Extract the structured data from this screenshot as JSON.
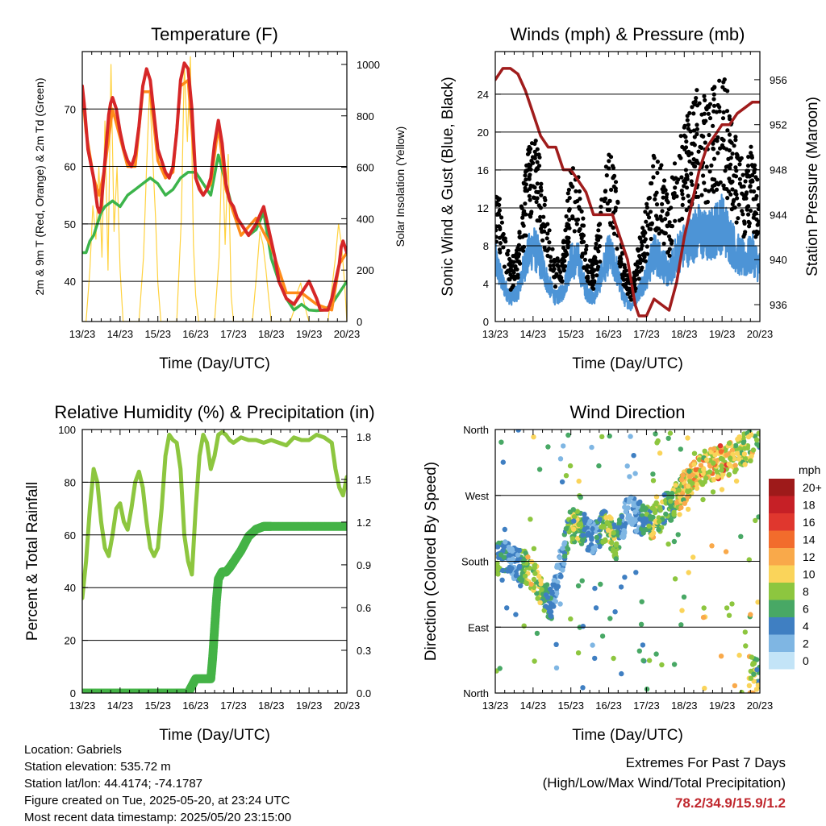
{
  "colors": {
    "red": "#d62728",
    "orange": "#ff8c1a",
    "green": "#3cb44b",
    "yellow": "#ffd23f",
    "black": "#000000",
    "blue": "#4d94d6",
    "maroon": "#a01c1c",
    "rh": "#8dc63f",
    "precip": "#44b346",
    "extremes": "#c0272d"
  },
  "info": {
    "location": "Location: Gabriels",
    "elevation": "Station elevation: 535.72 m",
    "latlon": "Station lat/lon: 44.4174; -74.1787",
    "created": "Figure created on Tue, 2025-05-20, at 23:24 UTC",
    "timestamp": "Most recent data timestamp: 2025/05/20 23:15:00"
  },
  "extremes": {
    "line1": "Extremes For Past 7 Days",
    "line2": "(High/Low/Max Wind/Total Precipitation)",
    "values": "78.2/34.9/15.9/1.2"
  },
  "chart_data": [
    {
      "id": "temperature",
      "type": "line",
      "title": "Temperature (F)",
      "xlabel": "Time (Day/UTC)",
      "ylabel": "2m & 9m T (Red, Orange) & 2m Td (Green)",
      "ylabel_right": "Solar Insolation (Yellow)",
      "x_ticks": [
        "13/23",
        "14/23",
        "15/23",
        "16/23",
        "17/23",
        "18/23",
        "19/23",
        "20/23"
      ],
      "xlim": [
        0,
        7
      ],
      "ylim": [
        33,
        80
      ],
      "ylim_right": [
        0,
        1050
      ],
      "y_ticks": [
        40,
        50,
        60,
        70
      ],
      "y_ticks_right": [
        0,
        200,
        400,
        600,
        800,
        1000
      ],
      "grid_y": [
        40,
        50,
        60,
        70
      ],
      "series": [
        {
          "color_key": "red",
          "axis": "left",
          "x": [
            0,
            0.05,
            0.15,
            0.3,
            0.4,
            0.45,
            0.5,
            0.6,
            0.7,
            0.75,
            0.8,
            0.9,
            1.0,
            1.1,
            1.2,
            1.3,
            1.4,
            1.5,
            1.6,
            1.7,
            1.8,
            1.9,
            2.0,
            2.1,
            2.2,
            2.3,
            2.4,
            2.5,
            2.6,
            2.7,
            2.8,
            2.9,
            3.0,
            3.1,
            3.2,
            3.3,
            3.4,
            3.5,
            3.6,
            3.7,
            3.8,
            3.9,
            4.0,
            4.1,
            4.2,
            4.4,
            4.6,
            4.8,
            5.0,
            5.1,
            5.2,
            5.4,
            5.6,
            5.8,
            6.0,
            6.2,
            6.3,
            6.4,
            6.5,
            6.6,
            6.7,
            6.8,
            6.85,
            6.9,
            7.0
          ],
          "y": [
            74,
            71,
            63,
            58,
            53,
            52,
            53,
            61,
            69,
            71,
            72,
            70,
            66,
            63,
            61,
            60,
            62,
            67,
            74,
            77,
            75,
            69,
            63,
            61,
            59,
            58,
            60,
            66,
            75,
            78,
            77,
            70,
            58,
            56,
            55,
            56,
            58,
            64,
            68,
            64,
            57,
            54,
            53,
            51,
            50,
            48,
            50,
            53,
            47,
            44,
            40,
            37,
            36,
            38,
            40,
            37,
            35,
            35,
            35,
            37,
            40,
            43,
            46,
            47,
            45
          ]
        },
        {
          "color_key": "orange",
          "axis": "left",
          "x": [
            0,
            0.1,
            0.3,
            0.45,
            0.6,
            0.8,
            1.0,
            1.2,
            1.4,
            1.6,
            1.8,
            2.0,
            2.2,
            2.4,
            2.6,
            2.8,
            3.0,
            3.2,
            3.4,
            3.6,
            3.8,
            4.0,
            4.2,
            4.6,
            5.0,
            5.4,
            5.8,
            6.2,
            6.6,
            6.8,
            7.0
          ],
          "y": [
            73,
            66,
            58,
            55,
            60,
            70,
            65,
            60,
            60,
            73,
            73,
            61,
            58,
            59,
            74,
            75,
            58,
            55,
            57,
            67,
            56,
            52,
            48,
            51,
            46,
            38,
            38,
            36,
            35,
            43,
            45
          ]
        },
        {
          "color_key": "green",
          "axis": "left",
          "x": [
            0,
            0.1,
            0.2,
            0.3,
            0.4,
            0.5,
            0.6,
            0.8,
            1.0,
            1.2,
            1.4,
            1.6,
            1.8,
            2.0,
            2.2,
            2.4,
            2.6,
            2.8,
            3.0,
            3.2,
            3.4,
            3.6,
            3.8,
            4.0,
            4.2,
            4.4,
            4.6,
            4.8,
            5.0,
            5.2,
            5.4,
            5.6,
            5.8,
            6.0,
            6.2,
            6.4,
            6.6,
            6.8,
            7.0
          ],
          "y": [
            45,
            45,
            47,
            48,
            50,
            52,
            53,
            54,
            53,
            55,
            56,
            57,
            58,
            57,
            55,
            56,
            58,
            59,
            59,
            57,
            55,
            62,
            57,
            52,
            50,
            48,
            49,
            52,
            44,
            40,
            37,
            35,
            36,
            35,
            34.9,
            35,
            36,
            38,
            40
          ]
        },
        {
          "color_key": "yellow",
          "axis": "right",
          "x": [
            0,
            0.1,
            0.2,
            0.28,
            0.36,
            0.44,
            0.52,
            0.6,
            0.68,
            0.76,
            0.84,
            0.92,
            1.0,
            1.08,
            1.16,
            1.3,
            1.5,
            1.62,
            1.7,
            1.78,
            1.86,
            1.94,
            2.0,
            2.08,
            2.16,
            2.3,
            2.5,
            2.62,
            2.7,
            2.78,
            2.86,
            2.94,
            3.0,
            3.08,
            3.16,
            3.3,
            3.5,
            3.62,
            3.7,
            3.78,
            3.86,
            3.94,
            4.0,
            4.08,
            4.16,
            4.3,
            4.5,
            4.62,
            4.7,
            4.78,
            4.86,
            4.94,
            5.0,
            5.1,
            5.3,
            5.5,
            5.62,
            5.7,
            5.78,
            5.86,
            5.94,
            6.0,
            6.1,
            6.3,
            6.5,
            6.62,
            6.7,
            6.78,
            6.86,
            6.94,
            7.0
          ],
          "y": [
            0,
            0,
            200,
            450,
            320,
            600,
            250,
            780,
            200,
            1000,
            350,
            600,
            200,
            0,
            0,
            0,
            0,
            250,
            600,
            900,
            650,
            400,
            150,
            0,
            0,
            0,
            0,
            400,
            1000,
            700,
            1030,
            300,
            100,
            0,
            0,
            0,
            0,
            250,
            700,
            300,
            650,
            100,
            0,
            0,
            0,
            0,
            0,
            200,
            350,
            300,
            200,
            80,
            0,
            0,
            0,
            0,
            50,
            120,
            150,
            80,
            30,
            0,
            0,
            0,
            0,
            150,
            250,
            380,
            300,
            150,
            0
          ]
        }
      ]
    },
    {
      "id": "winds",
      "type": "scatter",
      "title": "Winds (mph) & Pressure (mb)",
      "xlabel": "Time (Day/UTC)",
      "ylabel": "Sonic Wind & Gust (Blue, Black)",
      "ylabel_right": "Station Pressure (Maroon)",
      "x_ticks": [
        "13/23",
        "14/23",
        "15/23",
        "16/23",
        "17/23",
        "18/23",
        "19/23",
        "20/23"
      ],
      "xlim": [
        0,
        7
      ],
      "ylim": [
        0,
        28.5
      ],
      "ylim_right": [
        934.5,
        958.5
      ],
      "y_ticks": [
        0,
        4,
        8,
        12,
        16,
        20,
        24
      ],
      "y_ticks_right": [
        936,
        940,
        944,
        948,
        952,
        956
      ],
      "grid_y": [
        4,
        8,
        12,
        16,
        20,
        24
      ],
      "pressure": {
        "x": [
          0,
          0.2,
          0.4,
          0.6,
          0.8,
          1.0,
          1.2,
          1.4,
          1.6,
          1.8,
          2.0,
          2.2,
          2.4,
          2.6,
          2.8,
          3.0,
          3.1,
          3.2,
          3.3,
          3.4,
          3.5,
          3.6,
          3.7,
          3.8,
          4.0,
          4.2,
          4.4,
          4.6,
          4.8,
          5.0,
          5.2,
          5.4,
          5.6,
          5.8,
          6.0,
          6.2,
          6.4,
          6.6,
          6.8,
          7.0
        ],
        "y": [
          956,
          957,
          957,
          956.5,
          955,
          953,
          951,
          950,
          950,
          948,
          948,
          947,
          946,
          944,
          944,
          944,
          944,
          943,
          942,
          941,
          940,
          938,
          936,
          935,
          935,
          936.5,
          936,
          935.5,
          938,
          942,
          945,
          948,
          950,
          951,
          952,
          952,
          953,
          953.5,
          954,
          954
        ]
      },
      "wind_profile": {
        "x": [
          0,
          0.2,
          0.4,
          0.6,
          0.8,
          1.0,
          1.2,
          1.4,
          1.6,
          1.8,
          2.0,
          2.2,
          2.4,
          2.6,
          2.8,
          3.0,
          3.2,
          3.4,
          3.6,
          3.8,
          4.0,
          4.2,
          4.4,
          4.6,
          4.8,
          5.0,
          5.2,
          5.4,
          5.6,
          5.8,
          6.0,
          6.2,
          6.4,
          6.6,
          6.8,
          7.0
        ],
        "y": [
          8,
          5,
          3,
          4,
          8,
          10,
          8,
          5,
          3,
          4,
          8,
          8,
          4,
          3,
          6,
          9,
          7,
          3,
          2,
          4,
          6,
          9,
          8,
          6,
          9,
          10,
          11,
          12,
          11,
          12,
          13,
          11,
          9,
          8,
          9,
          7
        ]
      },
      "gust_max": 25.6,
      "wind_max": 15.9
    },
    {
      "id": "rh_precip",
      "type": "line",
      "title": "Relative Humidity (%) & Precipitation (in)",
      "xlabel": "Time (Day/UTC)",
      "ylabel": "Percent & Total Rainfall",
      "x_ticks": [
        "13/23",
        "14/23",
        "15/23",
        "16/23",
        "17/23",
        "18/23",
        "19/23",
        "20/23"
      ],
      "xlim": [
        0,
        7
      ],
      "ylim": [
        0,
        100
      ],
      "ylim_right": [
        0,
        1.85
      ],
      "y_ticks": [
        0,
        20,
        40,
        60,
        80,
        100
      ],
      "y_ticks_right": [
        "0.0",
        "0.3",
        "0.6",
        "0.9",
        "1.2",
        "1.5",
        "1.8"
      ],
      "y_ticks_right_values": [
        0,
        0.3,
        0.6,
        0.9,
        1.2,
        1.5,
        1.8
      ],
      "grid_y": [
        20,
        40,
        60,
        80
      ],
      "rh": {
        "x": [
          0,
          0.1,
          0.2,
          0.3,
          0.4,
          0.5,
          0.6,
          0.7,
          0.8,
          0.9,
          1.0,
          1.1,
          1.2,
          1.3,
          1.4,
          1.5,
          1.6,
          1.7,
          1.8,
          1.9,
          2.0,
          2.1,
          2.2,
          2.3,
          2.4,
          2.5,
          2.6,
          2.7,
          2.8,
          2.9,
          3.0,
          3.1,
          3.2,
          3.3,
          3.4,
          3.5,
          3.6,
          3.7,
          3.8,
          3.9,
          4.0,
          4.2,
          4.4,
          4.6,
          4.8,
          5.0,
          5.2,
          5.4,
          5.6,
          5.8,
          6.0,
          6.2,
          6.4,
          6.6,
          6.7,
          6.8,
          6.9,
          7.0
        ],
        "y": [
          36,
          50,
          70,
          85,
          80,
          65,
          55,
          52,
          60,
          70,
          72,
          65,
          62,
          70,
          80,
          84,
          78,
          65,
          55,
          52,
          55,
          70,
          90,
          98,
          96,
          95,
          85,
          60,
          50,
          45,
          70,
          90,
          98,
          95,
          85,
          90,
          98,
          99,
          98,
          96,
          95,
          97,
          96,
          96,
          95,
          96,
          95,
          94,
          97,
          96,
          96,
          98,
          97,
          95,
          85,
          78,
          75,
          82
        ]
      },
      "precip": {
        "x": [
          0,
          0.5,
          1.0,
          1.5,
          2.0,
          2.5,
          2.8,
          2.9,
          3.0,
          3.4,
          3.45,
          3.5,
          3.55,
          3.6,
          3.7,
          3.8,
          3.9,
          4.0,
          4.2,
          4.4,
          4.6,
          4.8,
          5.0,
          5.5,
          6.0,
          6.5,
          7.0
        ],
        "y": [
          0,
          0,
          0,
          0,
          0,
          0,
          0,
          0.05,
          0.1,
          0.1,
          0.25,
          0.45,
          0.65,
          0.8,
          0.85,
          0.85,
          0.88,
          0.92,
          1.0,
          1.1,
          1.15,
          1.17,
          1.17,
          1.17,
          1.17,
          1.17,
          1.17
        ]
      }
    },
    {
      "id": "wind_direction",
      "type": "scatter",
      "title": "Wind Direction",
      "xlabel": "Time (Day/UTC)",
      "ylabel": "Direction (Colored By Speed)",
      "x_ticks": [
        "13/23",
        "14/23",
        "15/23",
        "16/23",
        "17/23",
        "18/23",
        "19/23",
        "20/23"
      ],
      "xlim": [
        0,
        7
      ],
      "ylim": [
        0,
        360
      ],
      "y_ticks": [
        "North",
        "East",
        "South",
        "West",
        "North"
      ],
      "y_tick_values": [
        0,
        90,
        180,
        270,
        360
      ],
      "grid_y": [
        90,
        180,
        270
      ],
      "legend_title": "mph",
      "legend_labels": [
        "20+",
        "18",
        "16",
        "14",
        "12",
        "10",
        "8",
        "6",
        "4",
        "2",
        "0"
      ],
      "legend_colors": [
        "#9e1a1a",
        "#c62026",
        "#e0372e",
        "#f26c2c",
        "#f9a94a",
        "#fad45a",
        "#8dc63f",
        "#48a865",
        "#3f7fc2",
        "#7fb6e3",
        "#c3e4f7"
      ],
      "legend_placement": "right",
      "direction_profile": {
        "x": [
          0,
          0.3,
          0.6,
          0.9,
          1.2,
          1.5,
          1.8,
          2.0,
          2.3,
          2.6,
          2.9,
          3.2,
          3.5,
          3.8,
          4.1,
          4.4,
          4.7,
          5.0,
          5.3,
          5.6,
          5.9,
          6.2,
          6.5,
          6.8,
          7.0
        ],
        "y": [
          180,
          185,
          175,
          170,
          140,
          120,
          195,
          230,
          225,
          210,
          230,
          205,
          250,
          240,
          230,
          245,
          260,
          280,
          300,
          310,
          315,
          320,
          330,
          340,
          350
        ]
      }
    }
  ]
}
